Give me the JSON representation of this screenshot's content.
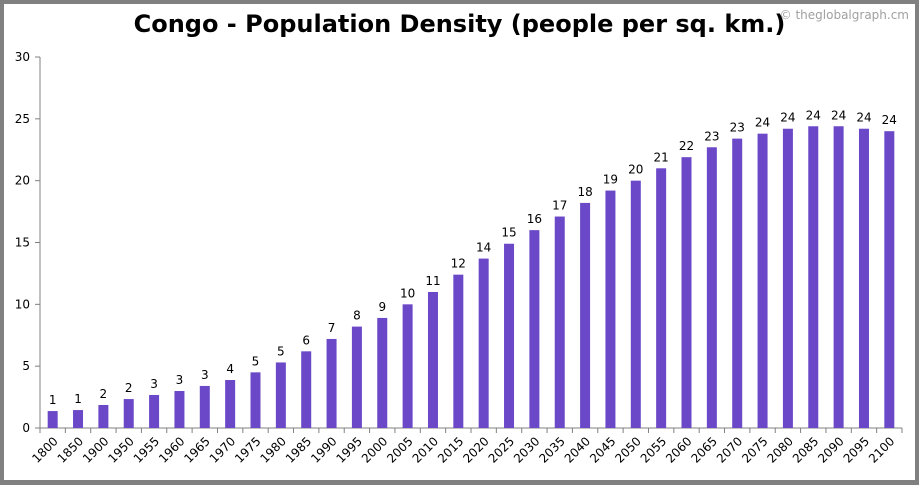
{
  "chart_data": {
    "type": "bar",
    "title": "Congo - Population Density (people per sq. km.)",
    "watermark": "© theglobalgraph.cm",
    "xlabel": "",
    "ylabel": "",
    "ylim": [
      0,
      30
    ],
    "yticks": [
      0,
      5,
      10,
      15,
      20,
      25,
      30
    ],
    "grid": false,
    "bar_color": "#6a48c8",
    "categories": [
      "1800",
      "1850",
      "1900",
      "1950",
      "1955",
      "1960",
      "1965",
      "1970",
      "1975",
      "1980",
      "1985",
      "1990",
      "1995",
      "2000",
      "2005",
      "2010",
      "2015",
      "2020",
      "2025",
      "2030",
      "2035",
      "2040",
      "2045",
      "2050",
      "2055",
      "2060",
      "2065",
      "2070",
      "2075",
      "2080",
      "2085",
      "2090",
      "2095",
      "2100"
    ],
    "values": [
      1.37,
      1.45,
      1.86,
      2.34,
      2.67,
      2.99,
      3.4,
      3.88,
      4.5,
      5.3,
      6.2,
      7.2,
      8.2,
      8.9,
      10.0,
      11.0,
      12.4,
      13.7,
      14.9,
      16.0,
      17.1,
      18.2,
      19.2,
      20.0,
      21.0,
      21.9,
      22.7,
      23.4,
      23.8,
      24.2,
      24.4,
      24.4,
      24.2,
      24.0
    ],
    "data_labels": [
      "1",
      "1",
      "2",
      "2",
      "3",
      "3",
      "3",
      "4",
      "5",
      "5",
      "6",
      "7",
      "8",
      "9",
      "10",
      "11",
      "12",
      "14",
      "15",
      "16",
      "17",
      "18",
      "19",
      "20",
      "21",
      "22",
      "23",
      "23",
      "24",
      "24",
      "24",
      "24",
      "24",
      "24"
    ]
  }
}
